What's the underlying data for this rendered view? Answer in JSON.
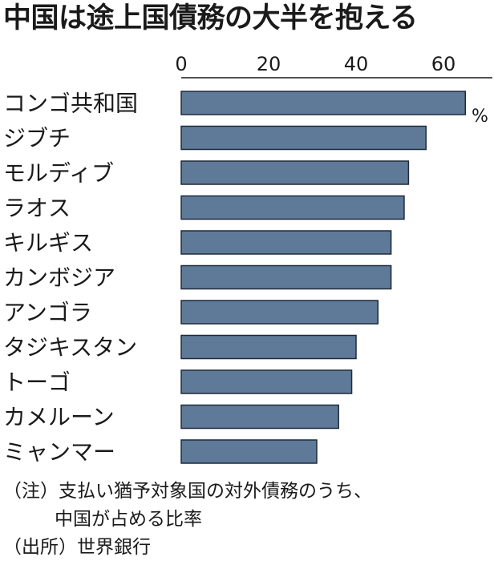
{
  "title": "中国は途上国債務の大半を抱える",
  "chart_data": {
    "type": "bar",
    "orientation": "horizontal",
    "categories": [
      "コンゴ共和国",
      "ジブチ",
      "モルディブ",
      "ラオス",
      "キルギス",
      "カンボジア",
      "アンゴラ",
      "タジキスタン",
      "トーゴ",
      "カメルーン",
      "ミャンマー"
    ],
    "values": [
      65,
      56,
      52,
      51,
      48,
      48,
      45,
      40,
      39,
      36,
      31
    ],
    "xlim": [
      0,
      70
    ],
    "xticks": [
      "0",
      "20",
      "40",
      "60"
    ],
    "unit": "%",
    "bar_color": "#5f7a99",
    "grid": false
  },
  "notes": {
    "line1": "（注）支払い猶予対象国の対外債務のうち、",
    "line2": "中国が占める比率",
    "source": "（出所）世界銀行"
  }
}
